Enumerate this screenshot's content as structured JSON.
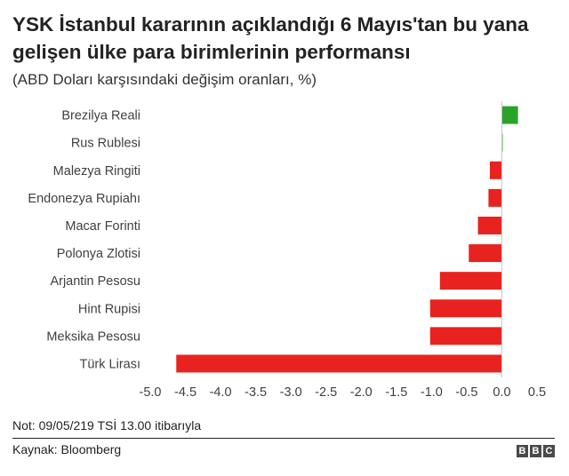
{
  "header": {
    "title": "YSK İstanbul kararının açıklandığı 6 Mayıs'tan bu yana gelişen ülke para birimlerinin performansı",
    "subtitle": "(ABD Doları karşısındaki değişim oranları, %)"
  },
  "footer": {
    "note": "Not: 09/05/219 TSİ 13.00 itibarıyla",
    "source": "Kaynak: Bloomberg",
    "logo_letters": [
      "B",
      "B",
      "C"
    ]
  },
  "colors": {
    "positive": "#2aa329",
    "negative": "#e8231f",
    "text": "#222222",
    "axis": "#c8c8c8"
  },
  "chart_data": {
    "type": "bar",
    "orientation": "horizontal",
    "categories": [
      "Brezilya Reali",
      "Rus Rublesi",
      "Malezya Ringiti",
      "Endonezya Rupiahı",
      "Macar Forinti",
      "Polonya Zlotisi",
      "Arjantin Pesosu",
      "Hint Rupisi",
      "Meksika Pesosu",
      "Türk Lirası"
    ],
    "values": [
      0.23,
      0.01,
      -0.17,
      -0.19,
      -0.34,
      -0.47,
      -0.88,
      -1.02,
      -1.02,
      -4.63
    ],
    "xlim": [
      -5.0,
      0.5
    ],
    "ticks": [
      -5.0,
      -4.5,
      -4.0,
      -3.5,
      -3.0,
      -2.5,
      -2.0,
      -1.5,
      -1.0,
      -0.5,
      0.0,
      0.5
    ],
    "tick_labels": [
      "-5.0",
      "-4.5",
      "-4.0",
      "-3.5",
      "-3.0",
      "-2.5",
      "-2.0",
      "-1.5",
      "-1.0",
      "-0.5",
      "0.0",
      "0.5"
    ],
    "grid": false,
    "legend": "none"
  }
}
